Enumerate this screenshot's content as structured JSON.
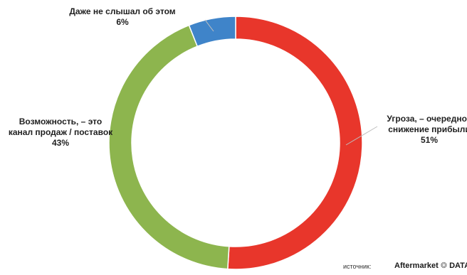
{
  "chart_data": {
    "type": "pie",
    "donut": true,
    "title": "",
    "slices": [
      {
        "label_lines": [
          "Угроза, – очередное",
          "снижение прибыли"
        ],
        "value": 51,
        "value_label": "51%",
        "color": "#e8362b"
      },
      {
        "label_lines": [
          "Возможность, – это",
          "канал продаж / поставок"
        ],
        "value": 43,
        "value_label": "43%",
        "color": "#8db54e"
      },
      {
        "label_lines": [
          "Даже не слышал об этом"
        ],
        "value": 6,
        "value_label": "6%",
        "color": "#3f84c9"
      }
    ],
    "legend": "none"
  },
  "source": {
    "label": "источник:",
    "brand": "Aftermarket",
    "brand_suffix": "DATA"
  }
}
